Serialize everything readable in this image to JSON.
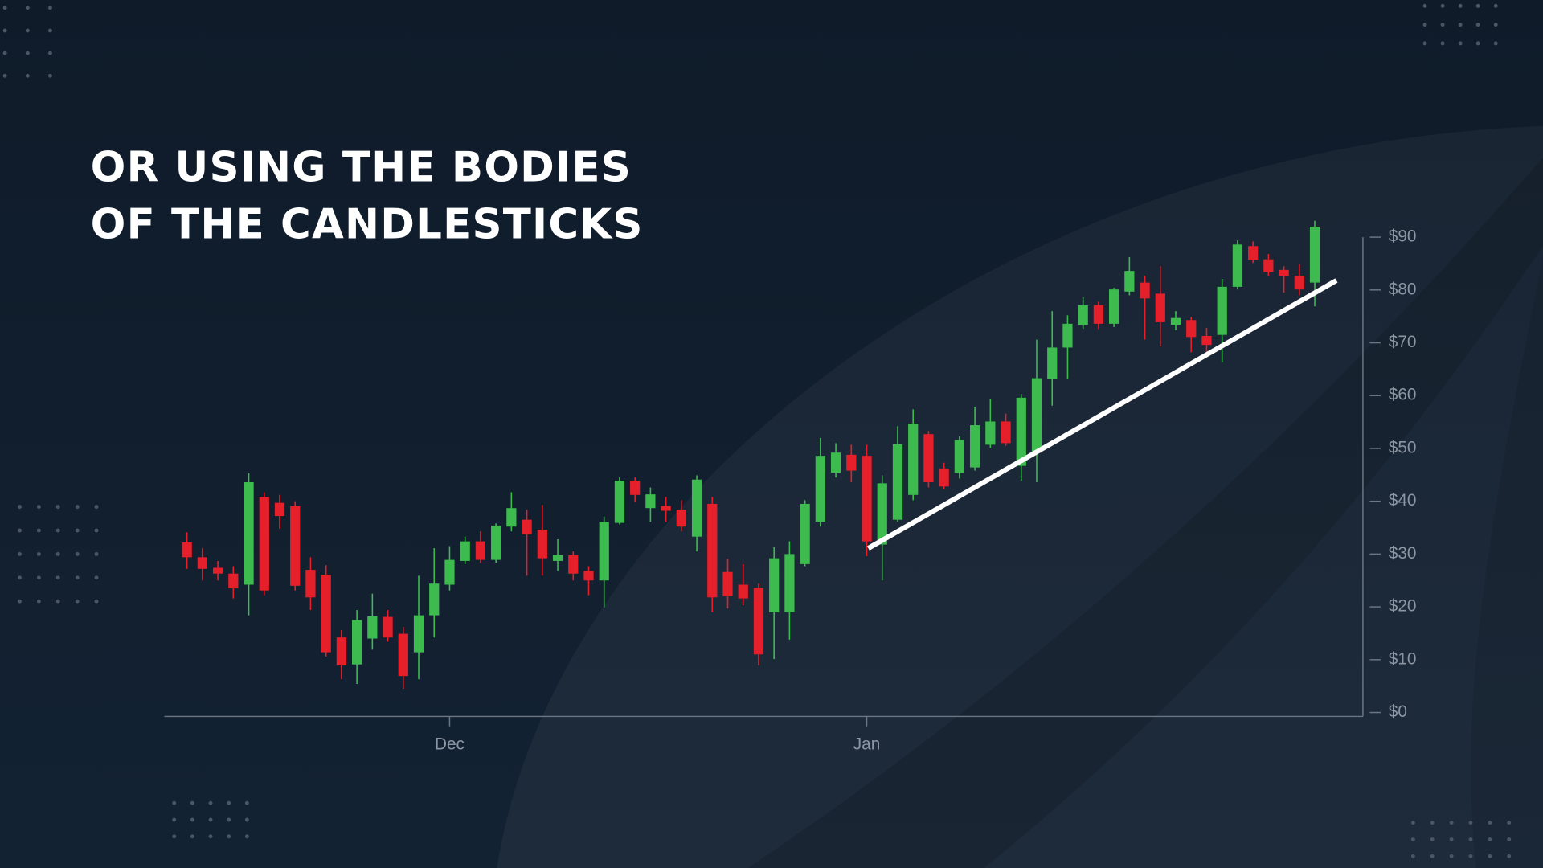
{
  "chart_data": {
    "type": "candlestick",
    "title": [
      "OR USING THE BODIES",
      "OF THE CANDLESTICKS"
    ],
    "categories": [
      null,
      null,
      null,
      null,
      null,
      null,
      null,
      null,
      null,
      null,
      null,
      null,
      null,
      null,
      null,
      null,
      null,
      "Dec",
      null,
      null,
      null,
      null,
      null,
      null,
      null,
      null,
      null,
      null,
      null,
      null,
      null,
      null,
      null,
      null,
      null,
      null,
      null,
      null,
      null,
      null,
      null,
      null,
      null,
      null,
      "Jan",
      null,
      null,
      null,
      null,
      null,
      null,
      null,
      null,
      null,
      null,
      null,
      null,
      null,
      null,
      null,
      null,
      null,
      null,
      null,
      null,
      null,
      null,
      null,
      null,
      null,
      null,
      null,
      null,
      null
    ],
    "open": [
      32.2,
      29.4,
      27.4,
      26.3,
      24.2,
      40.8,
      39.7,
      39.1,
      27.0,
      26.1,
      14.2,
      9.1,
      14.0,
      18.1,
      14.9,
      11.4,
      18.4,
      24.2,
      28.7,
      32.4,
      28.9,
      35.2,
      36.5,
      34.6,
      28.7,
      29.8,
      26.8,
      25.0,
      35.9,
      43.9,
      38.7,
      39.1,
      38.4,
      33.3,
      39.5,
      26.6,
      24.2,
      23.6,
      19.0,
      19.0,
      28.1,
      36.1,
      45.4,
      48.8,
      48.6,
      31.8,
      36.5,
      41.2,
      52.7,
      46.2,
      45.4,
      46.4,
      50.7,
      55.1,
      46.7,
      49.2,
      63.1,
      69.1,
      73.4,
      77.1,
      73.6,
      79.7,
      81.4,
      79.3,
      73.4,
      74.3,
      71.3,
      71.5,
      80.6,
      88.3,
      85.8,
      83.8,
      82.7,
      81.4
    ],
    "high": [
      34.1,
      31.1,
      28.7,
      27.7,
      45.3,
      41.7,
      41.2,
      40.0,
      29.4,
      27.9,
      15.6,
      19.4,
      22.5,
      19.4,
      16.2,
      25.9,
      31.1,
      31.5,
      33.3,
      34.3,
      35.8,
      41.7,
      38.4,
      39.3,
      32.8,
      30.5,
      27.7,
      37.1,
      44.5,
      44.5,
      42.6,
      40.8,
      40.2,
      44.9,
      40.8,
      29.1,
      28.1,
      24.4,
      31.3,
      32.4,
      40.2,
      52.0,
      51.0,
      50.7,
      50.7,
      44.9,
      54.2,
      57.4,
      53.3,
      47.3,
      52.3,
      57.9,
      59.4,
      56.6,
      60.3,
      70.6,
      76.0,
      75.2,
      78.6,
      77.8,
      80.4,
      86.2,
      82.7,
      84.5,
      76.0,
      74.9,
      72.8,
      82.1,
      89.4,
      89.2,
      86.8,
      84.5,
      84.9,
      93.1
    ],
    "low": [
      27.2,
      25.0,
      25.0,
      21.6,
      18.4,
      22.2,
      34.8,
      23.1,
      19.4,
      10.6,
      6.3,
      5.4,
      11.9,
      13.4,
      4.5,
      6.3,
      14.2,
      23.1,
      28.1,
      28.3,
      28.3,
      34.3,
      25.9,
      25.9,
      26.8,
      25.0,
      22.2,
      19.9,
      35.6,
      39.9,
      36.1,
      36.1,
      34.3,
      30.5,
      19.0,
      19.7,
      20.3,
      8.9,
      10.1,
      13.8,
      27.7,
      35.2,
      44.5,
      43.6,
      29.6,
      25.0,
      36.1,
      40.2,
      42.6,
      42.3,
      44.3,
      45.8,
      50.1,
      50.5,
      43.9,
      43.6,
      58.1,
      63.1,
      72.6,
      72.6,
      73.0,
      79.0,
      70.6,
      69.3,
      72.4,
      68.2,
      67.8,
      66.3,
      80.1,
      85.1,
      82.7,
      79.5,
      79.0,
      76.9
    ],
    "close": [
      29.4,
      27.2,
      26.3,
      23.5,
      43.6,
      23.1,
      37.2,
      24.0,
      21.8,
      11.4,
      8.9,
      17.5,
      18.2,
      14.2,
      6.9,
      18.4,
      24.4,
      28.9,
      32.4,
      28.9,
      35.4,
      38.7,
      33.7,
      29.2,
      29.8,
      26.3,
      25.0,
      36.1,
      43.9,
      41.2,
      41.3,
      38.2,
      35.2,
      44.1,
      21.8,
      22.0,
      21.6,
      11.0,
      29.2,
      30.0,
      39.5,
      48.6,
      49.2,
      45.8,
      32.4,
      43.4,
      50.8,
      54.7,
      43.6,
      42.8,
      51.6,
      54.4,
      55.1,
      51.0,
      59.6,
      63.3,
      69.1,
      73.6,
      77.1,
      73.6,
      80.1,
      83.6,
      78.4,
      73.9,
      74.7,
      71.1,
      69.6,
      80.6,
      88.6,
      85.7,
      83.4,
      82.7,
      80.1,
      92.0
    ],
    "up_color": "#3dbb4e",
    "down_color": "#e5202b",
    "ylim": [
      0,
      90
    ],
    "yticks": [
      {
        "value": 0,
        "label": "$0"
      },
      {
        "value": 10,
        "label": "$10"
      },
      {
        "value": 20,
        "label": "$20"
      },
      {
        "value": 30,
        "label": "$30"
      },
      {
        "value": 40,
        "label": "$40"
      },
      {
        "value": 50,
        "label": "$50"
      },
      {
        "value": 60,
        "label": "$60"
      },
      {
        "value": 70,
        "label": "$70"
      },
      {
        "value": 80,
        "label": "$80"
      },
      {
        "value": 90,
        "label": "$90"
      }
    ],
    "trendline": {
      "x": [
        44.1,
        74.4
      ],
      "y": [
        31.1,
        81.8
      ],
      "color": "#ffffff"
    }
  }
}
